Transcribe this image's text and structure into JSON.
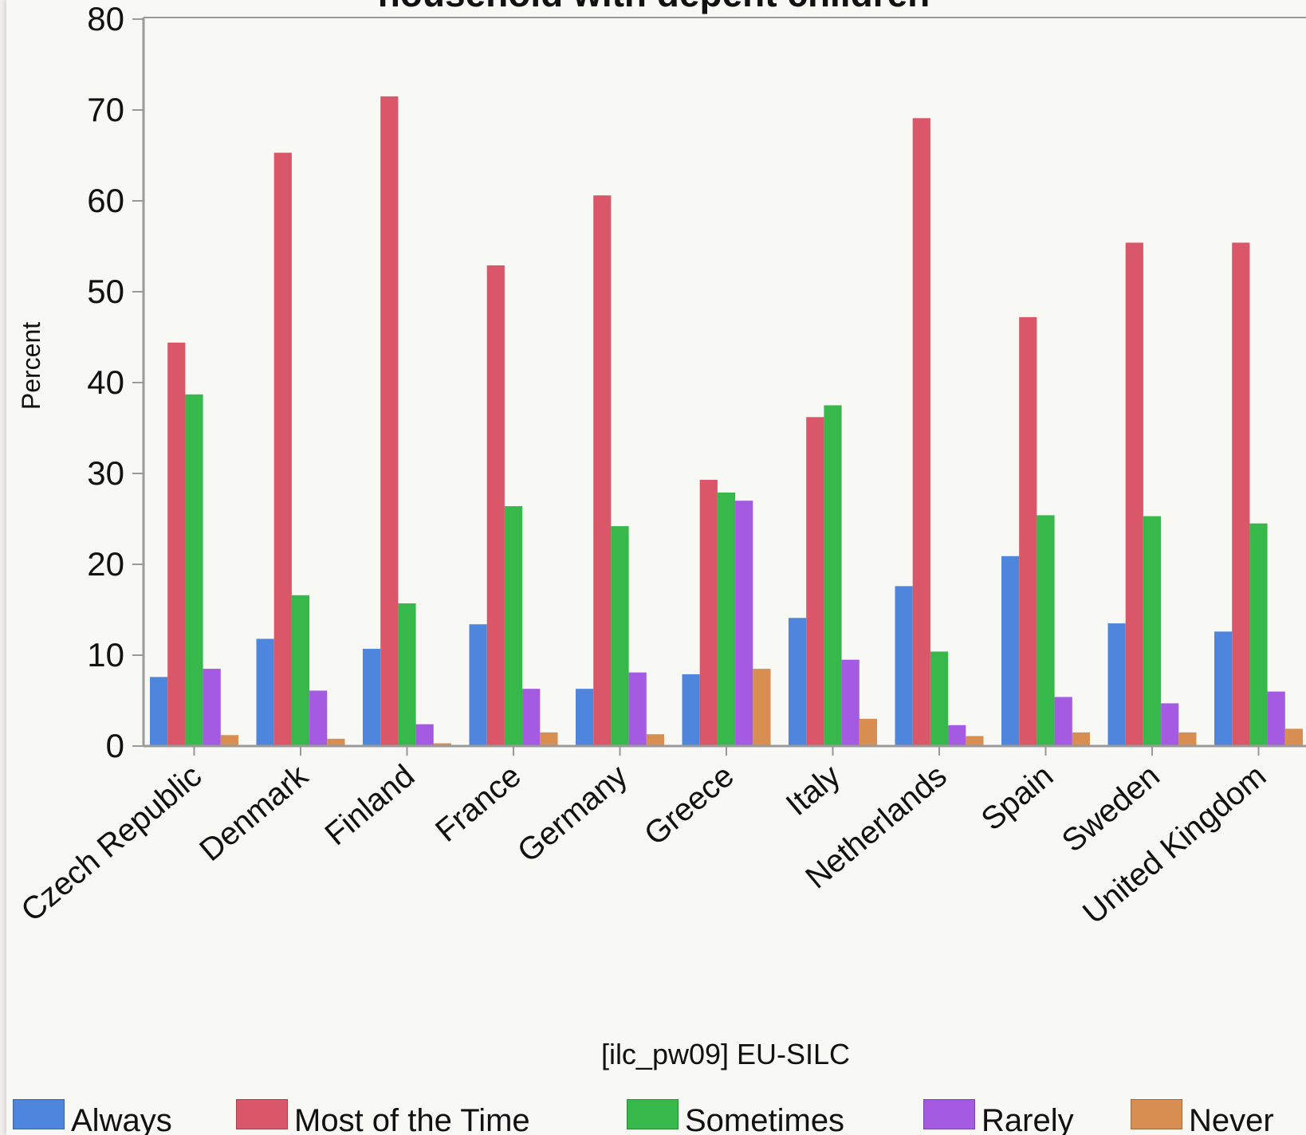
{
  "chart_data": {
    "type": "bar",
    "title": "household with depent children",
    "ylabel": "Percent",
    "xlabel": "[ilc_pw09] EU-SILC",
    "ylim": [
      0,
      80
    ],
    "yticks": [
      0,
      10,
      20,
      30,
      40,
      50,
      60,
      70,
      80
    ],
    "grid": false,
    "legend_position": "bottom",
    "categories": [
      "Czech Republic",
      "Denmark",
      "Finland",
      "France",
      "Germany",
      "Greece",
      "Italy",
      "Netherlands",
      "Spain",
      "Sweden",
      "United Kingdom"
    ],
    "series": [
      {
        "name": "Always",
        "color": "#4f86dd",
        "values": [
          7.6,
          11.8,
          10.7,
          13.4,
          6.3,
          7.9,
          14.1,
          17.6,
          20.9,
          13.5,
          12.6
        ]
      },
      {
        "name": "Most of the Time",
        "color": "#d95768",
        "values": [
          44.4,
          65.3,
          71.5,
          52.9,
          60.6,
          29.3,
          36.2,
          69.1,
          47.2,
          55.4,
          55.4
        ]
      },
      {
        "name": "Sometimes",
        "color": "#36b94a",
        "values": [
          38.7,
          16.6,
          15.7,
          26.4,
          24.2,
          27.9,
          37.5,
          10.4,
          25.4,
          25.3,
          24.5
        ]
      },
      {
        "name": "Rarely",
        "color": "#a45be1",
        "values": [
          8.5,
          6.1,
          2.4,
          6.3,
          8.1,
          27.0,
          9.5,
          2.3,
          5.4,
          4.7,
          6.0
        ]
      },
      {
        "name": "Never",
        "color": "#d78e50",
        "values": [
          1.2,
          0.8,
          0.3,
          1.5,
          1.3,
          8.5,
          3.0,
          1.1,
          1.5,
          1.5,
          1.9
        ]
      }
    ]
  }
}
